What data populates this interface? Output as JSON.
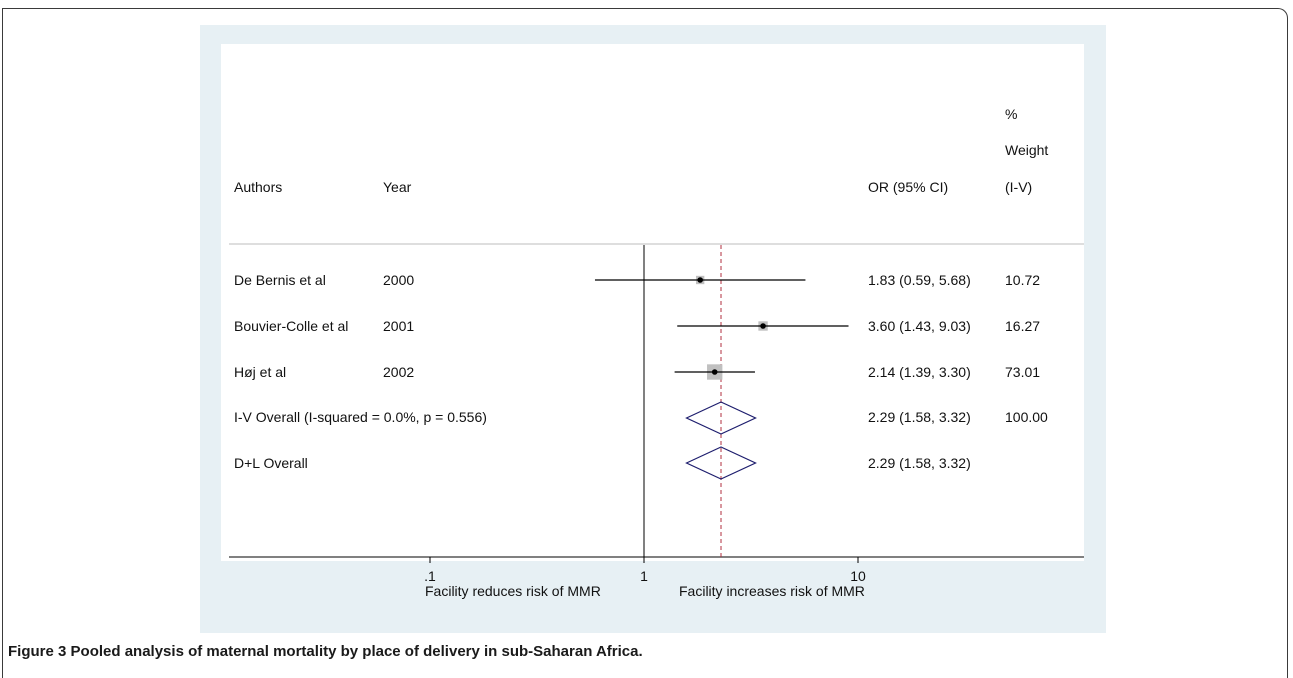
{
  "figure": {
    "caption_label": "Figure 3",
    "caption_text": "Pooled analysis of maternal mortality by place of delivery in sub-Saharan Africa."
  },
  "columns": {
    "authors": "Authors",
    "year": "Year",
    "or_ci": "OR (95% CI)",
    "weight_line1": "%",
    "weight_line2": "Weight",
    "weight_line3": "(I-V)"
  },
  "chart_data": {
    "type": "forest",
    "xscale": "log",
    "xlim": [
      0.0366,
      16.3
    ],
    "xticks": [
      {
        "value": 0.1,
        "label": ".1"
      },
      {
        "value": 1,
        "label": "1"
      },
      {
        "value": 10,
        "label": "10"
      }
    ],
    "x_left_label": "Facility reduces risk of MMR",
    "x_right_label": "Facility increases risk of MMR",
    "reference_line": 1,
    "overall_line": 2.29,
    "studies": [
      {
        "author": "De Bernis et al",
        "year": "2000",
        "or": 1.83,
        "lo": 0.59,
        "hi": 5.68,
        "ci_text": "1.83 (0.59, 5.68)",
        "weight": 10.72,
        "weight_text": "10.72"
      },
      {
        "author": "Bouvier-Colle et al",
        "year": "2001",
        "or": 3.6,
        "lo": 1.43,
        "hi": 9.03,
        "ci_text": "3.60 (1.43, 9.03)",
        "weight": 16.27,
        "weight_text": "16.27"
      },
      {
        "author": "Høj et al",
        "year": "2002",
        "or": 2.14,
        "lo": 1.39,
        "hi": 3.3,
        "ci_text": "2.14 (1.39, 3.30)",
        "weight": 73.01,
        "weight_text": "73.01"
      }
    ],
    "pooled": [
      {
        "label": "I-V Overall  (I-squared = 0.0%, p = 0.556)",
        "or": 2.29,
        "lo": 1.58,
        "hi": 3.32,
        "ci_text": "2.29 (1.58, 3.32)",
        "weight_text": "100.00"
      },
      {
        "label": "D+L Overall",
        "or": 2.29,
        "lo": 1.58,
        "hi": 3.32,
        "ci_text": "2.29 (1.58, 3.32)",
        "weight_text": ""
      }
    ],
    "colors": {
      "diamond": "#1e1e6e",
      "overall_line": "#b03040",
      "box": "#c0c0c0",
      "line": "#000000"
    }
  }
}
